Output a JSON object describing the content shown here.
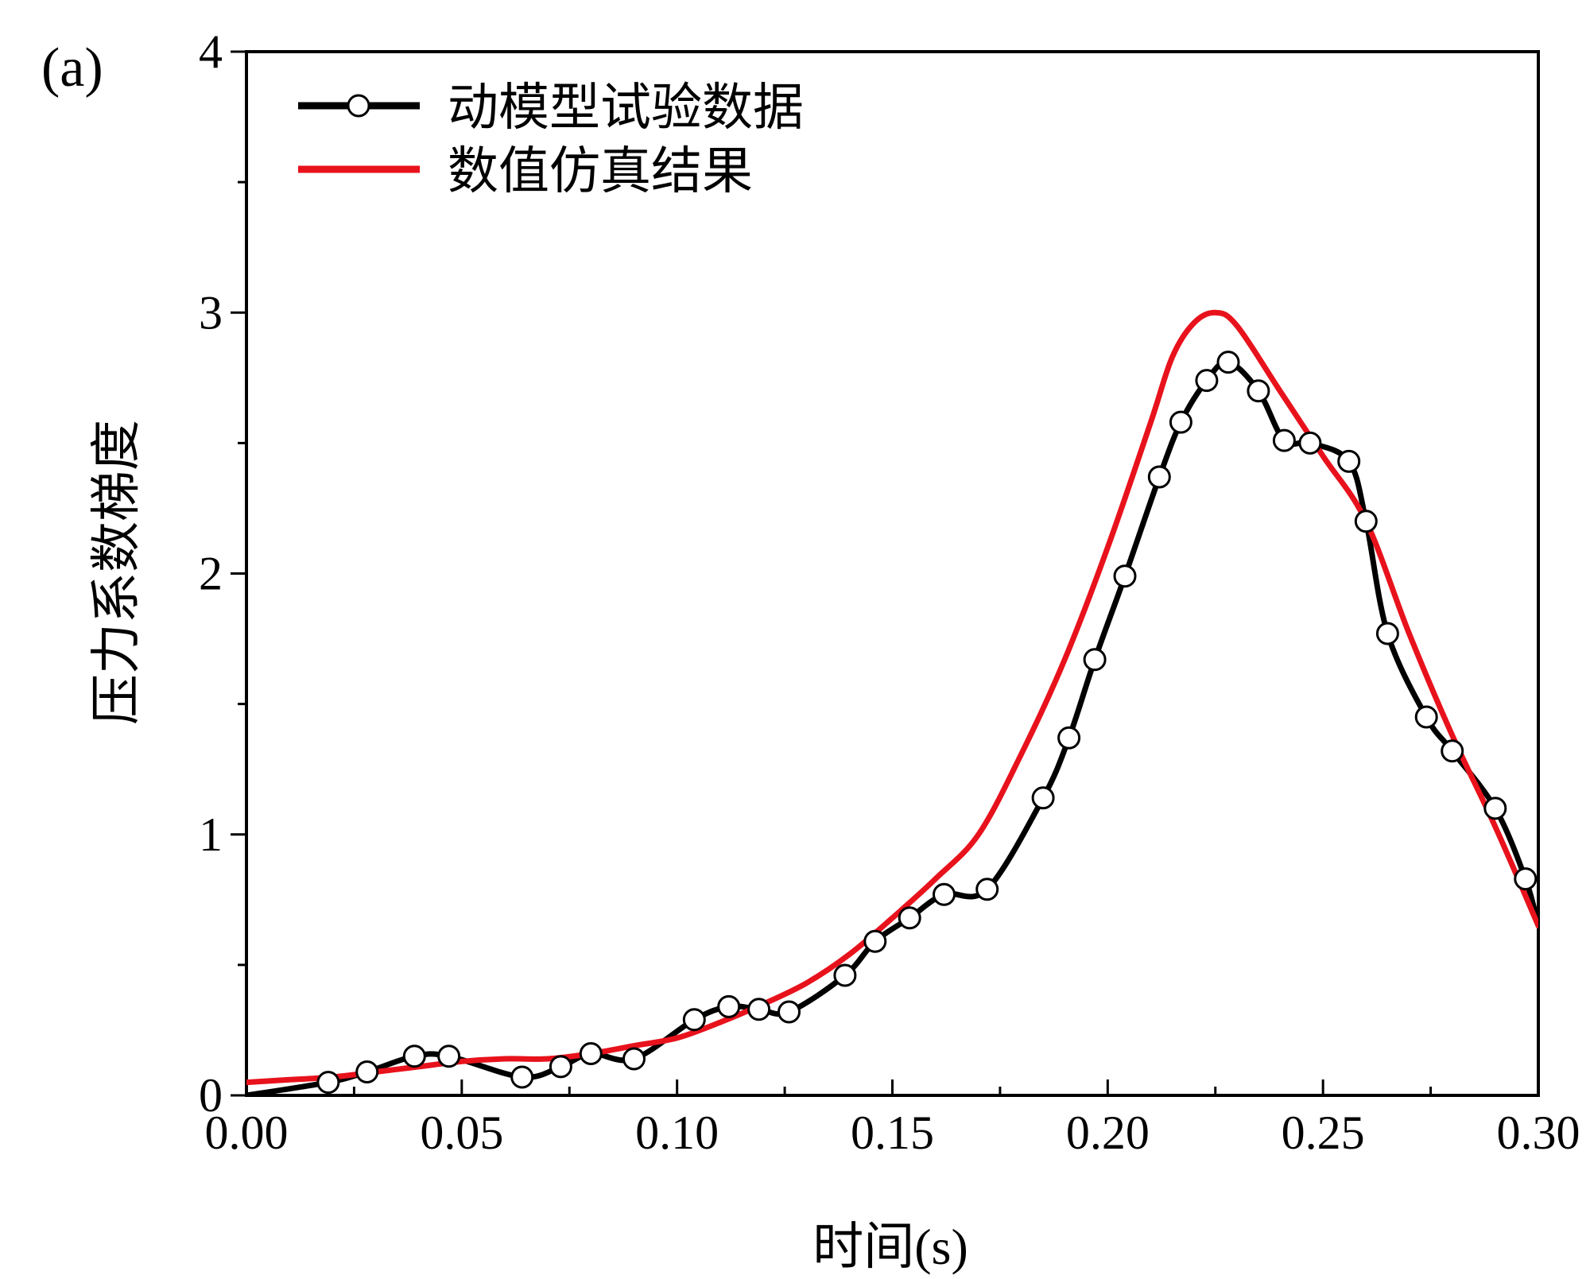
{
  "panel_label": "(a)",
  "chart_data": {
    "type": "line",
    "xlabel": "时间(s)",
    "ylabel": "压力系数梯度",
    "xlim": [
      0,
      0.3
    ],
    "ylim": [
      0,
      4
    ],
    "x_ticks": [
      0,
      0.05,
      0.1,
      0.15,
      0.2,
      0.25,
      0.3
    ],
    "x_tick_labels": [
      "0.00",
      "0.05",
      "0.10",
      "0.15",
      "0.20",
      "0.25",
      "0.30"
    ],
    "x_minor_ticks": [
      0.025,
      0.075,
      0.125,
      0.175,
      0.225,
      0.275
    ],
    "y_ticks": [
      0,
      1,
      2,
      3,
      4
    ],
    "y_tick_labels": [
      "0",
      "1",
      "2",
      "3",
      "4"
    ],
    "y_minor_ticks": [
      0.5,
      1.5,
      2.5,
      3.5
    ],
    "grid": false,
    "legend_position": "top-left",
    "series": [
      {
        "name": "动模型试验数据",
        "color": "#000000",
        "style": "line-with-open-circles",
        "x": [
          0.0,
          0.019,
          0.028,
          0.039,
          0.047,
          0.064,
          0.073,
          0.08,
          0.09,
          0.104,
          0.112,
          0.119,
          0.126,
          0.139,
          0.146,
          0.154,
          0.162,
          0.172,
          0.185,
          0.191,
          0.197,
          0.204,
          0.212,
          0.217,
          0.223,
          0.228,
          0.235,
          0.241,
          0.247,
          0.256,
          0.26,
          0.265,
          0.274,
          0.28,
          0.29,
          0.297,
          0.3
        ],
        "y": [
          0.0,
          0.05,
          0.09,
          0.15,
          0.15,
          0.07,
          0.11,
          0.16,
          0.14,
          0.29,
          0.34,
          0.33,
          0.32,
          0.46,
          0.59,
          0.68,
          0.77,
          0.79,
          1.14,
          1.37,
          1.67,
          1.99,
          2.37,
          2.58,
          2.74,
          2.81,
          2.7,
          2.51,
          2.5,
          2.43,
          2.2,
          1.77,
          1.45,
          1.32,
          1.1,
          0.83,
          0.65
        ]
      },
      {
        "name": "数值仿真结果",
        "color": "#e8121c",
        "style": "line",
        "x": [
          0.0,
          0.01,
          0.02,
          0.03,
          0.04,
          0.05,
          0.06,
          0.07,
          0.08,
          0.09,
          0.1,
          0.11,
          0.12,
          0.13,
          0.14,
          0.15,
          0.16,
          0.17,
          0.18,
          0.19,
          0.2,
          0.21,
          0.215,
          0.22,
          0.225,
          0.23,
          0.24,
          0.25,
          0.26,
          0.27,
          0.28,
          0.29,
          0.3
        ],
        "y": [
          0.05,
          0.06,
          0.07,
          0.09,
          0.11,
          0.13,
          0.14,
          0.14,
          0.16,
          0.19,
          0.22,
          0.28,
          0.35,
          0.43,
          0.54,
          0.68,
          0.83,
          1.0,
          1.31,
          1.67,
          2.1,
          2.58,
          2.83,
          2.96,
          3.0,
          2.95,
          2.7,
          2.45,
          2.2,
          1.77,
          1.38,
          1.03,
          0.65
        ]
      }
    ]
  }
}
